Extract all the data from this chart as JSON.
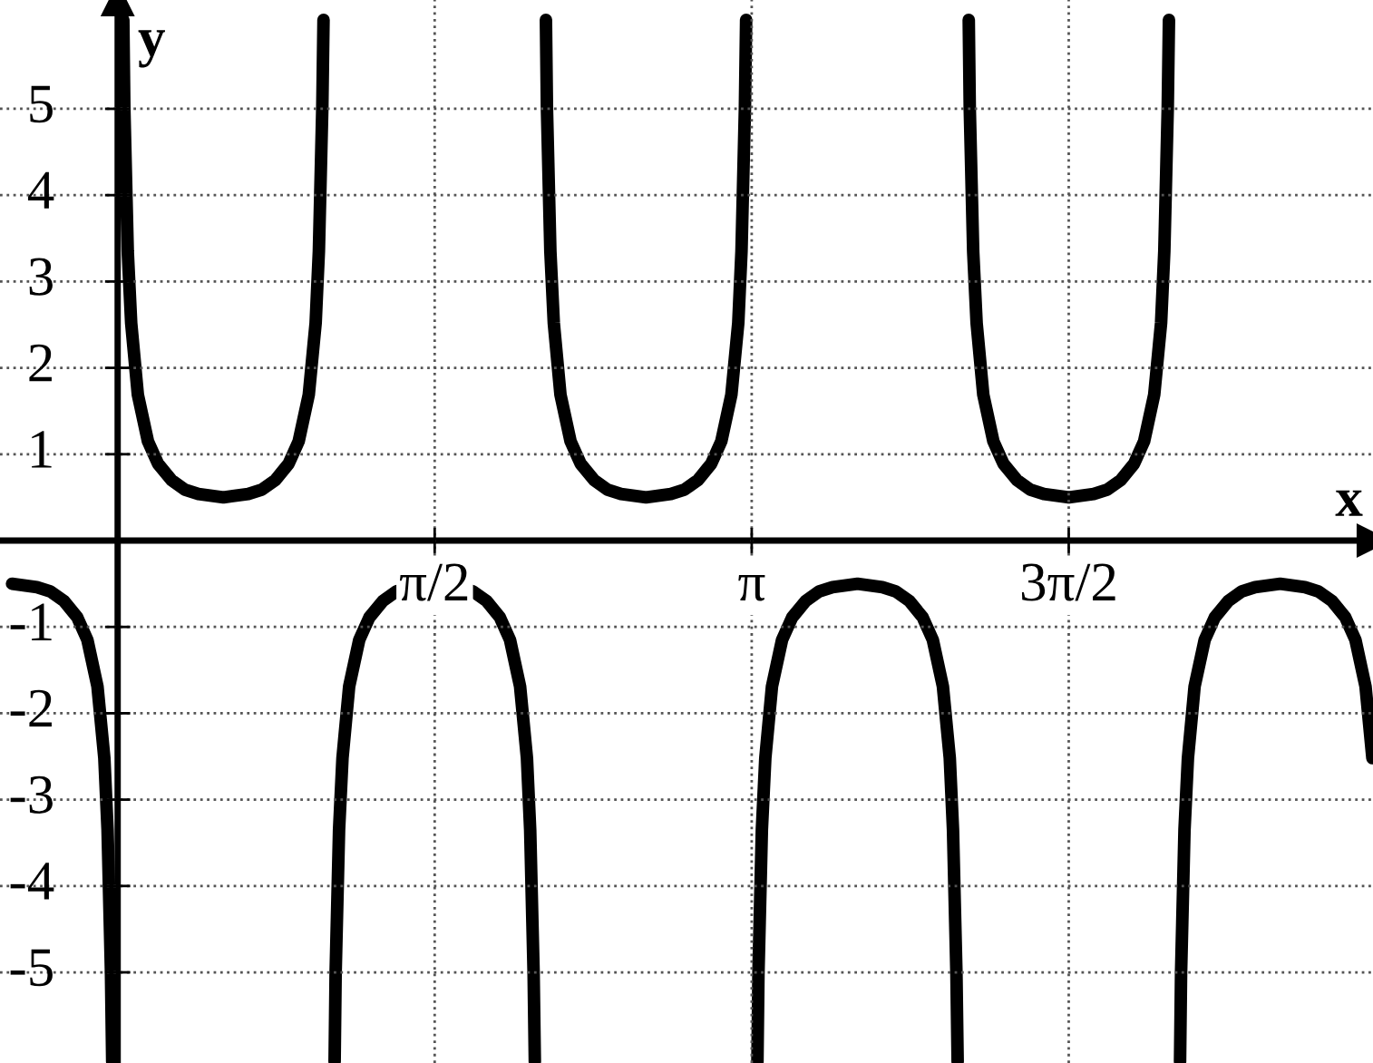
{
  "chart_data": {
    "type": "line",
    "xlabel": "x",
    "ylabel": "y",
    "series": [
      {
        "color": "#000000",
        "x": [
          -0.523,
          -0.4,
          -0.333,
          -0.266,
          -0.2,
          -0.15,
          -0.1,
          -0.066,
          -0.05,
          -0.033,
          -0.027,
          0,
          0.028,
          0.033,
          0.05,
          0.067,
          0.1,
          0.15,
          0.2,
          0.267,
          0.333,
          0.4,
          0.524,
          0.647,
          0.714,
          0.781,
          0.847,
          0.897,
          0.947,
          0.981,
          0.997,
          1.014,
          1.02,
          1.047,
          1.075,
          1.08,
          1.097,
          1.114,
          1.147,
          1.197,
          1.247,
          1.314,
          1.38,
          1.447,
          1.571,
          1.694,
          1.761,
          1.828,
          1.894,
          1.944,
          1.994,
          2.028,
          2.044,
          2.061,
          2.067,
          2.094,
          2.122,
          2.127,
          2.144,
          2.161,
          2.194,
          2.244,
          2.294,
          2.361,
          2.427,
          2.494,
          2.618,
          2.741,
          2.808,
          2.875,
          2.941,
          2.991,
          3.041,
          3.075,
          3.091,
          3.108,
          3.114,
          3.142,
          3.17,
          3.175,
          3.192,
          3.209,
          3.242,
          3.292,
          3.342,
          3.409,
          3.475,
          3.542,
          3.666,
          3.789,
          3.856,
          3.923,
          3.989,
          4.039,
          4.089,
          4.123,
          4.139,
          4.156,
          4.162,
          4.189,
          4.217,
          4.222,
          4.239,
          4.256,
          4.289,
          4.339,
          4.389,
          4.456,
          4.522,
          4.589,
          4.713,
          4.836,
          4.903,
          4.97,
          5.036,
          5.086,
          5.136,
          5.17,
          5.186,
          5.203,
          5.209,
          5.236,
          5.264,
          5.269,
          5.286,
          5.303,
          5.336,
          5.386,
          5.436,
          5.503,
          5.569,
          5.636,
          5.76,
          5.883,
          5.95,
          6.017,
          6.083,
          6.133,
          6.183,
          6.217
        ],
        "values": [
          -0.5,
          -0.54,
          -0.59,
          -0.7,
          -0.89,
          -1.15,
          -1.69,
          -2.52,
          -3.35,
          -5.01,
          -6.03,
          null,
          6.03,
          5.01,
          3.35,
          2.52,
          1.69,
          1.15,
          0.89,
          0.7,
          0.59,
          0.54,
          0.5,
          0.54,
          0.59,
          0.7,
          0.89,
          1.15,
          1.69,
          2.52,
          3.35,
          5.01,
          6.03,
          null,
          -6.03,
          -5.01,
          -3.35,
          -2.52,
          -1.69,
          -1.15,
          -0.89,
          -0.7,
          -0.59,
          -0.54,
          -0.5,
          -0.54,
          -0.59,
          -0.7,
          -0.89,
          -1.15,
          -1.69,
          -2.52,
          -3.35,
          -5.01,
          -6.03,
          null,
          6.03,
          5.01,
          3.35,
          2.52,
          1.69,
          1.15,
          0.89,
          0.7,
          0.59,
          0.54,
          0.5,
          0.54,
          0.59,
          0.7,
          0.89,
          1.15,
          1.69,
          2.52,
          3.35,
          5.01,
          6.03,
          null,
          -6.03,
          -5.01,
          -3.35,
          -2.52,
          -1.69,
          -1.15,
          -0.89,
          -0.7,
          -0.59,
          -0.54,
          -0.5,
          -0.54,
          -0.59,
          -0.7,
          -0.89,
          -1.15,
          -1.69,
          -2.52,
          -3.35,
          -5.01,
          -6.03,
          null,
          6.03,
          5.01,
          3.35,
          2.52,
          1.69,
          1.15,
          0.89,
          0.7,
          0.59,
          0.54,
          0.5,
          0.54,
          0.59,
          0.7,
          0.89,
          1.15,
          1.69,
          2.52,
          3.35,
          5.01,
          6.03,
          null,
          -6.03,
          -5.01,
          -3.35,
          -2.52,
          -1.69,
          -1.15,
          -0.89,
          -0.7,
          -0.59,
          -0.54,
          -0.5,
          -0.54,
          -0.59,
          -0.7,
          -0.89,
          -1.15,
          -1.69,
          -2.52
        ]
      }
    ],
    "xlim": [
      -0.583,
      6.22
    ],
    "ylim": [
      -6.05,
      6.26
    ],
    "xticks": [
      {
        "value": 1.5708,
        "label": "π/2"
      },
      {
        "value": 3.1416,
        "label": "π"
      },
      {
        "value": 4.7124,
        "label": "3π/2"
      }
    ],
    "yticks": [
      -5,
      -4,
      -3,
      -2,
      -1,
      1,
      2,
      3,
      4,
      5
    ],
    "grid": true,
    "line_style": "solid",
    "marker": "none",
    "legend": false
  }
}
